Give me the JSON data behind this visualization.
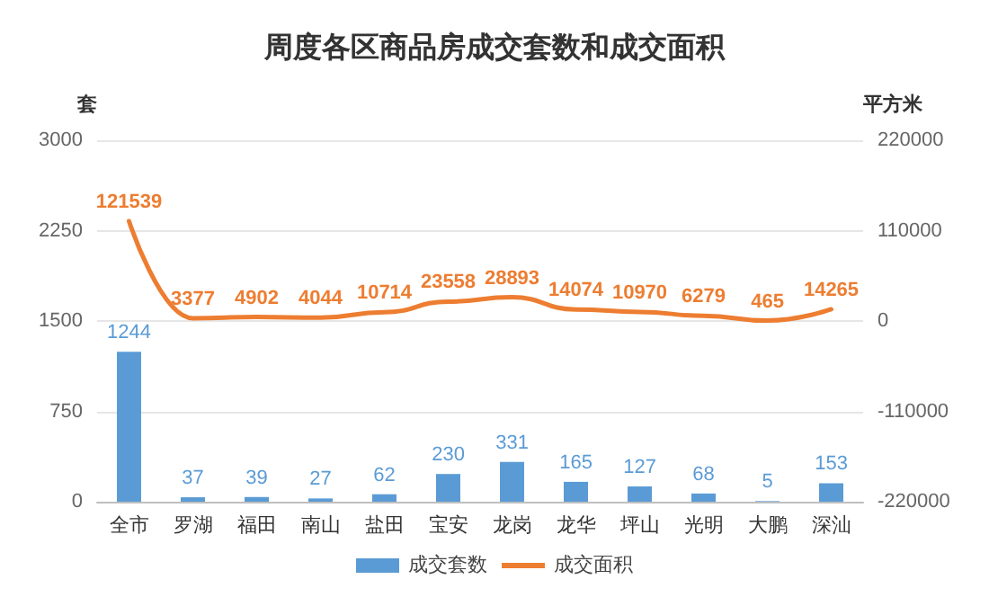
{
  "chart_data": {
    "type": "bar",
    "title": "周度各区商品房成交套数和成交面积",
    "ylabel": "套",
    "y2label": "平方米",
    "categories": [
      "全市",
      "罗湖",
      "福田",
      "南山",
      "盐田",
      "宝安",
      "龙岗",
      "龙华",
      "坪山",
      "光明",
      "大鹏",
      "深汕"
    ],
    "series": [
      {
        "name": "成交套数",
        "color": "#5b9bd5",
        "values": [
          1244,
          37,
          39,
          27,
          62,
          230,
          331,
          165,
          127,
          68,
          5,
          153
        ]
      },
      {
        "name": "成交面积",
        "type": "line",
        "axis": "y2",
        "color": "#ed7d31",
        "values": [
          121539,
          3377,
          4902,
          4044,
          10714,
          23558,
          28893,
          14074,
          10970,
          6279,
          465,
          14265
        ]
      }
    ],
    "ylim": [
      0,
      3000
    ],
    "yticks": [
      0,
      750,
      1500,
      2250,
      3000
    ],
    "y2lim": [
      -220000,
      220000
    ],
    "y2ticks": [
      -220000,
      -110000,
      0,
      110000,
      220000
    ],
    "grid": "y",
    "legend": "bottom",
    "data_labels": true,
    "marker": "none",
    "line_style": "solid"
  }
}
